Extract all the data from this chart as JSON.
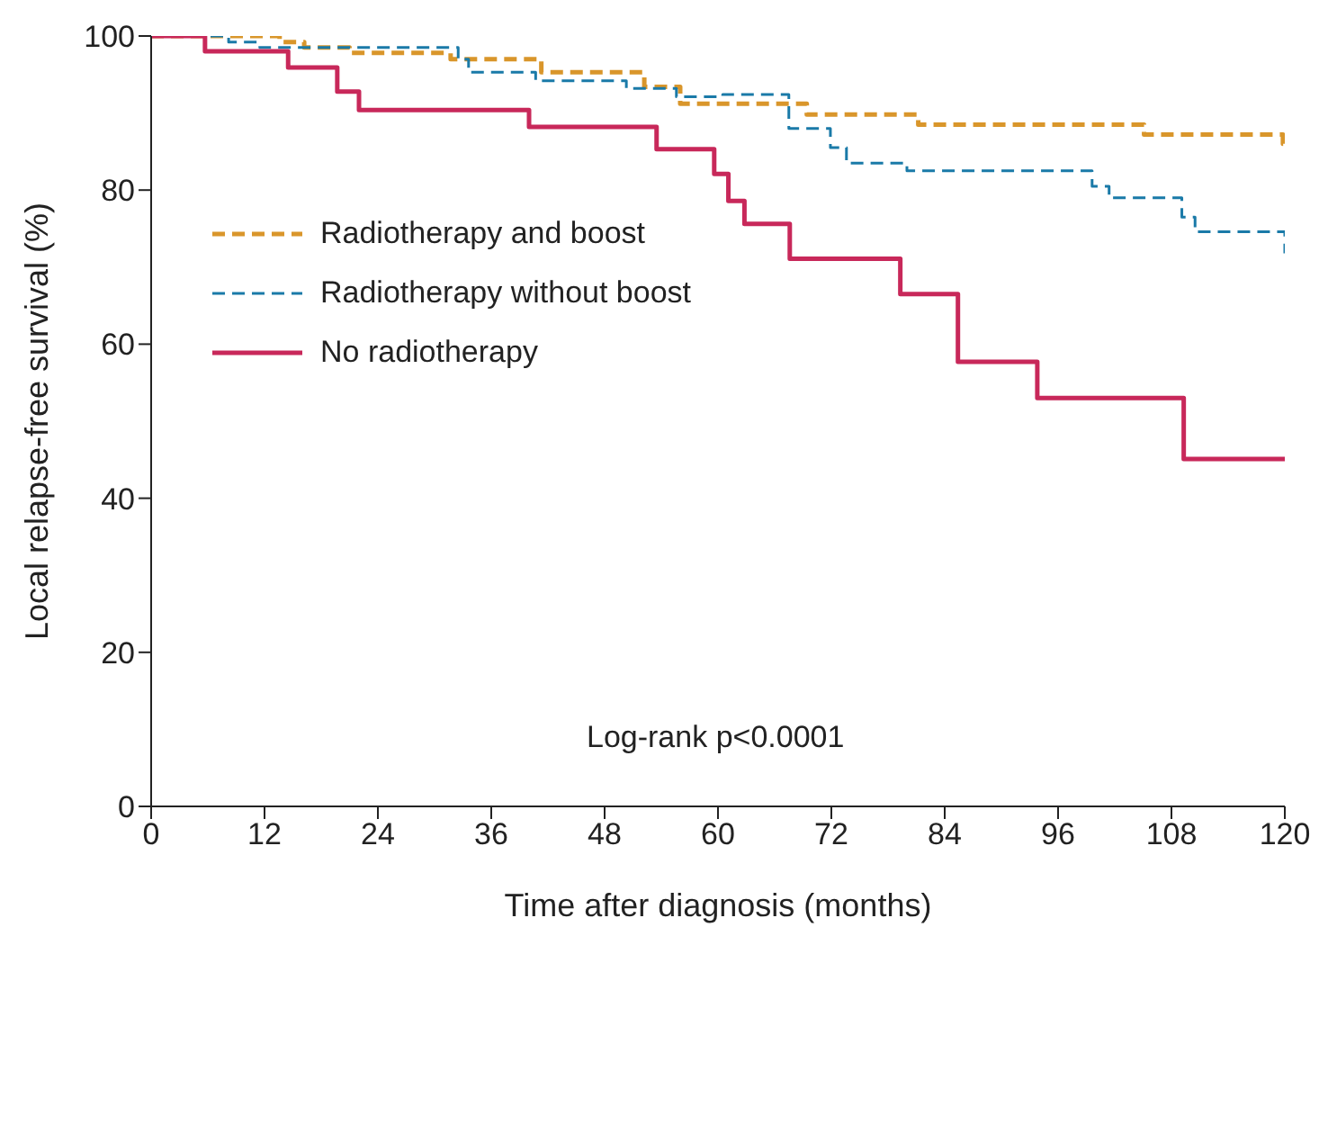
{
  "chart_data": {
    "type": "step",
    "xlabel": "Time after diagnosis (months)",
    "ylabel": "Local relapse-free survival (%)",
    "xlim": [
      0,
      120
    ],
    "xticks": [
      0,
      12,
      24,
      36,
      48,
      60,
      72,
      84,
      96,
      108,
      120
    ],
    "ylim": [
      0,
      100
    ],
    "yticks": [
      0,
      20,
      40,
      60,
      80,
      100
    ],
    "legend": "top left",
    "marker": "none",
    "annotations": [
      "Log-rank p<0.0001"
    ],
    "series": [
      {
        "name": "Radiotherapy and boost",
        "color": "#d9962b",
        "line_style": "dashed",
        "x": [
          0,
          13.6,
          16.2,
          21,
          31.7,
          41.3,
          52.2,
          56,
          69.4,
          81.2,
          105.1,
          119.8,
          120
        ],
        "values": [
          100,
          99.2,
          98.5,
          97.8,
          97,
          95.3,
          93.4,
          91.2,
          89.8,
          88.5,
          87.2,
          86,
          86
        ]
      },
      {
        "name": "Radiotherapy without boost",
        "color": "#1a7aa8",
        "line_style": "dashed",
        "x": [
          0,
          8.2,
          11.5,
          32.5,
          33.6,
          40.7,
          50.3,
          55.6,
          60.5,
          67.5,
          71.9,
          73.6,
          80,
          99.6,
          101.4,
          109.1,
          110.5,
          120
        ],
        "values": [
          100,
          99.2,
          98.5,
          97,
          95.3,
          94.2,
          93.2,
          92.1,
          92.4,
          88,
          85.5,
          83.5,
          82.5,
          80.5,
          79,
          76.5,
          74.6,
          71.8
        ]
      },
      {
        "name": "No radiotherapy",
        "color": "#c8285a",
        "line_style": "solid",
        "x": [
          0,
          5.7,
          14.5,
          19.7,
          22,
          40,
          53.5,
          59.6,
          61.1,
          62.8,
          67.6,
          79.3,
          85.4,
          93.8,
          109.3,
          120
        ],
        "values": [
          100,
          98,
          95.9,
          92.8,
          90.4,
          88.2,
          85.3,
          82.1,
          78.6,
          75.6,
          71.1,
          66.5,
          57.7,
          53,
          45.1,
          45.1
        ]
      }
    ]
  }
}
